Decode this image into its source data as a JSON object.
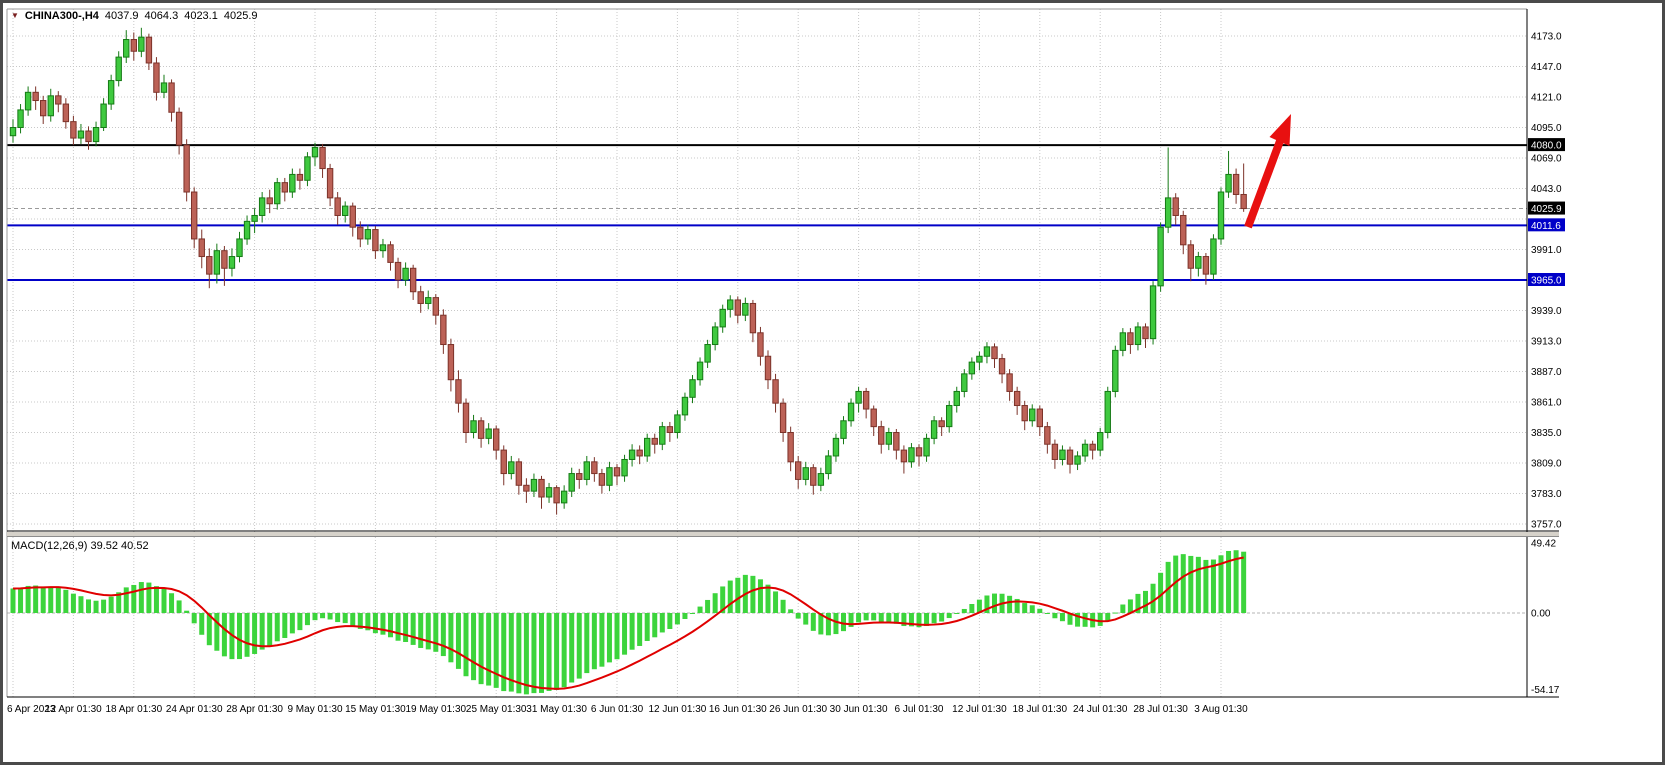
{
  "header": {
    "symbol_period": "CHINA300-,H4",
    "open": "4037.9",
    "high": "4064.3",
    "low": "4023.1",
    "close": "4025.9"
  },
  "macd": {
    "label": "MACD(12,26,9) 39.52 40.52"
  },
  "chart_data": {
    "type": "candlestick",
    "symbol": "CHINA300-",
    "timeframe": "H4",
    "current_bar": {
      "open": 4037.9,
      "high": 4064.3,
      "low": 4023.1,
      "close": 4025.9
    },
    "price_axis": {
      "min": 3757.0,
      "max": 4173.0,
      "step": 26.0,
      "ticks": [
        "4173.0",
        "4147.0",
        "4121.0",
        "4095.0",
        "4069.0",
        "4043.0",
        "4017.0",
        "3991.0",
        "3965.0",
        "3939.0",
        "3913.0",
        "3887.0",
        "3861.0",
        "3835.0",
        "3809.0",
        "3783.0",
        "3757.0"
      ]
    },
    "price_badges": [
      {
        "text": "4080.0",
        "price": 4080.0,
        "bg": "#000000"
      },
      {
        "text": "4025.9",
        "price": 4025.9,
        "bg": "#000000"
      },
      {
        "text": "4011.6",
        "price": 4011.6,
        "bg": "#0000c8"
      },
      {
        "text": "3965.0",
        "price": 3965.0,
        "bg": "#0000c8"
      }
    ],
    "horizontal_lines": [
      {
        "price": 4080.0,
        "color": "#000000"
      },
      {
        "price": 4011.6,
        "color": "#0000c8"
      },
      {
        "price": 3965.0,
        "color": "#0000c8"
      }
    ],
    "current_price_line": {
      "price": 4025.9,
      "color": "#9a9a9a"
    },
    "time_axis": {
      "label_every_n_candles": 8,
      "labels": [
        "6 Apr 2023",
        "12 Apr 01:30",
        "18 Apr 01:30",
        "24 Apr 01:30",
        "28 Apr 01:30",
        "9 May 01:30",
        "15 May 01:30",
        "19 May 01:30",
        "25 May 01:30",
        "31 May 01:30",
        "6 Jun 01:30",
        "12 Jun 01:30",
        "16 Jun 01:30",
        "26 Jun 01:30",
        "30 Jun 01:30",
        "6 Jul 01:30",
        "12 Jul 01:30",
        "18 Jul 01:30",
        "24 Jul 01:30",
        "28 Jul 01:30",
        "3 Aug 01:30"
      ]
    },
    "candles": [
      [
        4088,
        4102,
        4082,
        4095
      ],
      [
        4095,
        4115,
        4090,
        4110
      ],
      [
        4110,
        4130,
        4105,
        4125
      ],
      [
        4125,
        4130,
        4110,
        4118
      ],
      [
        4118,
        4122,
        4098,
        4105
      ],
      [
        4105,
        4128,
        4100,
        4122
      ],
      [
        4122,
        4126,
        4108,
        4115
      ],
      [
        4115,
        4120,
        4094,
        4100
      ],
      [
        4100,
        4105,
        4080,
        4086
      ],
      [
        4086,
        4098,
        4081,
        4092
      ],
      [
        4092,
        4096,
        4076,
        4083
      ],
      [
        4083,
        4100,
        4079,
        4095
      ],
      [
        4095,
        4120,
        4092,
        4115
      ],
      [
        4115,
        4140,
        4110,
        4135
      ],
      [
        4135,
        4160,
        4130,
        4155
      ],
      [
        4155,
        4178,
        4150,
        4170
      ],
      [
        4170,
        4176,
        4152,
        4160
      ],
      [
        4160,
        4180,
        4155,
        4172
      ],
      [
        4172,
        4175,
        4144,
        4150
      ],
      [
        4150,
        4155,
        4118,
        4125
      ],
      [
        4125,
        4140,
        4120,
        4133
      ],
      [
        4133,
        4136,
        4100,
        4108
      ],
      [
        4108,
        4112,
        4072,
        4080
      ],
      [
        4080,
        4085,
        4032,
        4040
      ],
      [
        4040,
        4044,
        3992,
        4000
      ],
      [
        4000,
        4008,
        3975,
        3985
      ],
      [
        3985,
        3992,
        3958,
        3970
      ],
      [
        3970,
        3996,
        3962,
        3990
      ],
      [
        3990,
        3994,
        3960,
        3975
      ],
      [
        3975,
        3992,
        3968,
        3985
      ],
      [
        3985,
        4006,
        3980,
        4000
      ],
      [
        4000,
        4020,
        3995,
        4015
      ],
      [
        4015,
        4026,
        4005,
        4020
      ],
      [
        4020,
        4040,
        4014,
        4035
      ],
      [
        4035,
        4042,
        4022,
        4030
      ],
      [
        4030,
        4052,
        4025,
        4048
      ],
      [
        4048,
        4052,
        4032,
        4040
      ],
      [
        4040,
        4060,
        4035,
        4055
      ],
      [
        4055,
        4060,
        4042,
        4050
      ],
      [
        4050,
        4074,
        4045,
        4070
      ],
      [
        4070,
        4082,
        4062,
        4078
      ],
      [
        4078,
        4081,
        4052,
        4060
      ],
      [
        4060,
        4064,
        4028,
        4035
      ],
      [
        4035,
        4040,
        4012,
        4020
      ],
      [
        4020,
        4032,
        4014,
        4028
      ],
      [
        4028,
        4031,
        4002,
        4010
      ],
      [
        4010,
        4015,
        3993,
        4000
      ],
      [
        4000,
        4012,
        3995,
        4008
      ],
      [
        4008,
        4011,
        3983,
        3990
      ],
      [
        3990,
        4000,
        3984,
        3995
      ],
      [
        3995,
        3998,
        3973,
        3980
      ],
      [
        3980,
        3984,
        3958,
        3965
      ],
      [
        3965,
        3980,
        3960,
        3975
      ],
      [
        3975,
        3978,
        3948,
        3955
      ],
      [
        3955,
        3960,
        3937,
        3945
      ],
      [
        3945,
        3956,
        3940,
        3950
      ],
      [
        3950,
        3953,
        3927,
        3935
      ],
      [
        3935,
        3940,
        3902,
        3910
      ],
      [
        3910,
        3915,
        3870,
        3880
      ],
      [
        3880,
        3888,
        3852,
        3860
      ],
      [
        3860,
        3864,
        3826,
        3835
      ],
      [
        3835,
        3850,
        3830,
        3845
      ],
      [
        3845,
        3848,
        3822,
        3830
      ],
      [
        3830,
        3843,
        3825,
        3838
      ],
      [
        3838,
        3841,
        3812,
        3820
      ],
      [
        3820,
        3824,
        3790,
        3800
      ],
      [
        3800,
        3815,
        3795,
        3810
      ],
      [
        3810,
        3813,
        3782,
        3790
      ],
      [
        3790,
        3796,
        3775,
        3785
      ],
      [
        3785,
        3800,
        3780,
        3795
      ],
      [
        3795,
        3798,
        3770,
        3780
      ],
      [
        3780,
        3792,
        3775,
        3788
      ],
      [
        3788,
        3790,
        3765,
        3775
      ],
      [
        3775,
        3790,
        3770,
        3785
      ],
      [
        3785,
        3805,
        3780,
        3800
      ],
      [
        3800,
        3804,
        3787,
        3795
      ],
      [
        3795,
        3815,
        3790,
        3810
      ],
      [
        3810,
        3814,
        3793,
        3800
      ],
      [
        3800,
        3804,
        3783,
        3790
      ],
      [
        3790,
        3810,
        3785,
        3805
      ],
      [
        3805,
        3808,
        3790,
        3798
      ],
      [
        3798,
        3816,
        3793,
        3812
      ],
      [
        3812,
        3825,
        3806,
        3820
      ],
      [
        3820,
        3824,
        3808,
        3815
      ],
      [
        3815,
        3834,
        3810,
        3830
      ],
      [
        3830,
        3834,
        3817,
        3825
      ],
      [
        3825,
        3844,
        3820,
        3840
      ],
      [
        3840,
        3844,
        3827,
        3835
      ],
      [
        3835,
        3854,
        3830,
        3850
      ],
      [
        3850,
        3869,
        3845,
        3865
      ],
      [
        3865,
        3884,
        3860,
        3880
      ],
      [
        3880,
        3899,
        3875,
        3895
      ],
      [
        3895,
        3914,
        3890,
        3910
      ],
      [
        3910,
        3929,
        3905,
        3925
      ],
      [
        3925,
        3944,
        3920,
        3940
      ],
      [
        3940,
        3952,
        3933,
        3948
      ],
      [
        3948,
        3951,
        3928,
        3935
      ],
      [
        3935,
        3950,
        3930,
        3945
      ],
      [
        3945,
        3948,
        3912,
        3920
      ],
      [
        3920,
        3925,
        3892,
        3900
      ],
      [
        3900,
        3905,
        3872,
        3880
      ],
      [
        3880,
        3885,
        3852,
        3860
      ],
      [
        3860,
        3864,
        3827,
        3835
      ],
      [
        3835,
        3840,
        3802,
        3810
      ],
      [
        3810,
        3815,
        3787,
        3795
      ],
      [
        3795,
        3810,
        3790,
        3805
      ],
      [
        3805,
        3808,
        3782,
        3790
      ],
      [
        3790,
        3805,
        3785,
        3800
      ],
      [
        3800,
        3820,
        3795,
        3815
      ],
      [
        3815,
        3834,
        3810,
        3830
      ],
      [
        3830,
        3849,
        3825,
        3845
      ],
      [
        3845,
        3864,
        3840,
        3860
      ],
      [
        3860,
        3874,
        3852,
        3870
      ],
      [
        3870,
        3873,
        3847,
        3855
      ],
      [
        3855,
        3858,
        3832,
        3840
      ],
      [
        3840,
        3845,
        3817,
        3825
      ],
      [
        3825,
        3839,
        3820,
        3835
      ],
      [
        3835,
        3838,
        3812,
        3820
      ],
      [
        3820,
        3824,
        3800,
        3810
      ],
      [
        3810,
        3826,
        3805,
        3822
      ],
      [
        3822,
        3825,
        3806,
        3815
      ],
      [
        3815,
        3834,
        3810,
        3830
      ],
      [
        3830,
        3849,
        3825,
        3845
      ],
      [
        3845,
        3848,
        3832,
        3840
      ],
      [
        3840,
        3862,
        3835,
        3858
      ],
      [
        3858,
        3874,
        3852,
        3870
      ],
      [
        3870,
        3889,
        3865,
        3885
      ],
      [
        3885,
        3899,
        3880,
        3895
      ],
      [
        3895,
        3904,
        3888,
        3900
      ],
      [
        3900,
        3912,
        3894,
        3908
      ],
      [
        3908,
        3911,
        3890,
        3898
      ],
      [
        3898,
        3902,
        3877,
        3885
      ],
      [
        3885,
        3889,
        3862,
        3870
      ],
      [
        3870,
        3874,
        3850,
        3858
      ],
      [
        3858,
        3862,
        3837,
        3845
      ],
      [
        3845,
        3859,
        3840,
        3855
      ],
      [
        3855,
        3858,
        3832,
        3840
      ],
      [
        3840,
        3844,
        3817,
        3825
      ],
      [
        3825,
        3829,
        3804,
        3812
      ],
      [
        3812,
        3824,
        3807,
        3820
      ],
      [
        3820,
        3823,
        3800,
        3808
      ],
      [
        3808,
        3819,
        3803,
        3815
      ],
      [
        3815,
        3829,
        3810,
        3825
      ],
      [
        3825,
        3828,
        3812,
        3820
      ],
      [
        3820,
        3839,
        3815,
        3835
      ],
      [
        3835,
        3874,
        3830,
        3870
      ],
      [
        3870,
        3909,
        3865,
        3905
      ],
      [
        3905,
        3924,
        3900,
        3920
      ],
      [
        3920,
        3924,
        3902,
        3910
      ],
      [
        3910,
        3929,
        3905,
        3925
      ],
      [
        3925,
        3928,
        3907,
        3915
      ],
      [
        3915,
        3964,
        3910,
        3960
      ],
      [
        3960,
        4014,
        3955,
        4010
      ],
      [
        4010,
        4078,
        4005,
        4035
      ],
      [
        4035,
        4039,
        4012,
        4020
      ],
      [
        4020,
        4024,
        3987,
        3995
      ],
      [
        3995,
        3999,
        3964,
        3975
      ],
      [
        3975,
        3989,
        3968,
        3985
      ],
      [
        3985,
        3988,
        3961,
        3970
      ],
      [
        3970,
        4004,
        3965,
        4000
      ],
      [
        4000,
        4044,
        3995,
        4040
      ],
      [
        4040,
        4075,
        4035,
        4055
      ],
      [
        4055,
        4060,
        4030,
        4037.9
      ],
      [
        4037.9,
        4064.3,
        4023.1,
        4025.9
      ]
    ],
    "macd_indicator": {
      "name": "MACD",
      "params": [
        12,
        26,
        9
      ],
      "macd_value": 39.52,
      "signal_value": 40.52,
      "scale_labels": [
        {
          "text": "49.42",
          "value": 49.42
        },
        {
          "text": "0.00",
          "value": 0.0
        },
        {
          "text": "-54.17",
          "value": -54.17
        }
      ],
      "histogram_color": "#3cd43c",
      "signal_color": "#e00000"
    },
    "colors": {
      "bull": "#3fc93f",
      "bull_border": "#157a15",
      "bear": "#bc6257",
      "bear_border": "#7c332a",
      "grid": "#c8c8c8",
      "frame": "#000000",
      "arrow": "#e81010",
      "background": "#ffffff"
    },
    "annotations": [
      {
        "type": "arrow",
        "direction": "up-right",
        "color": "#e81010"
      }
    ]
  }
}
